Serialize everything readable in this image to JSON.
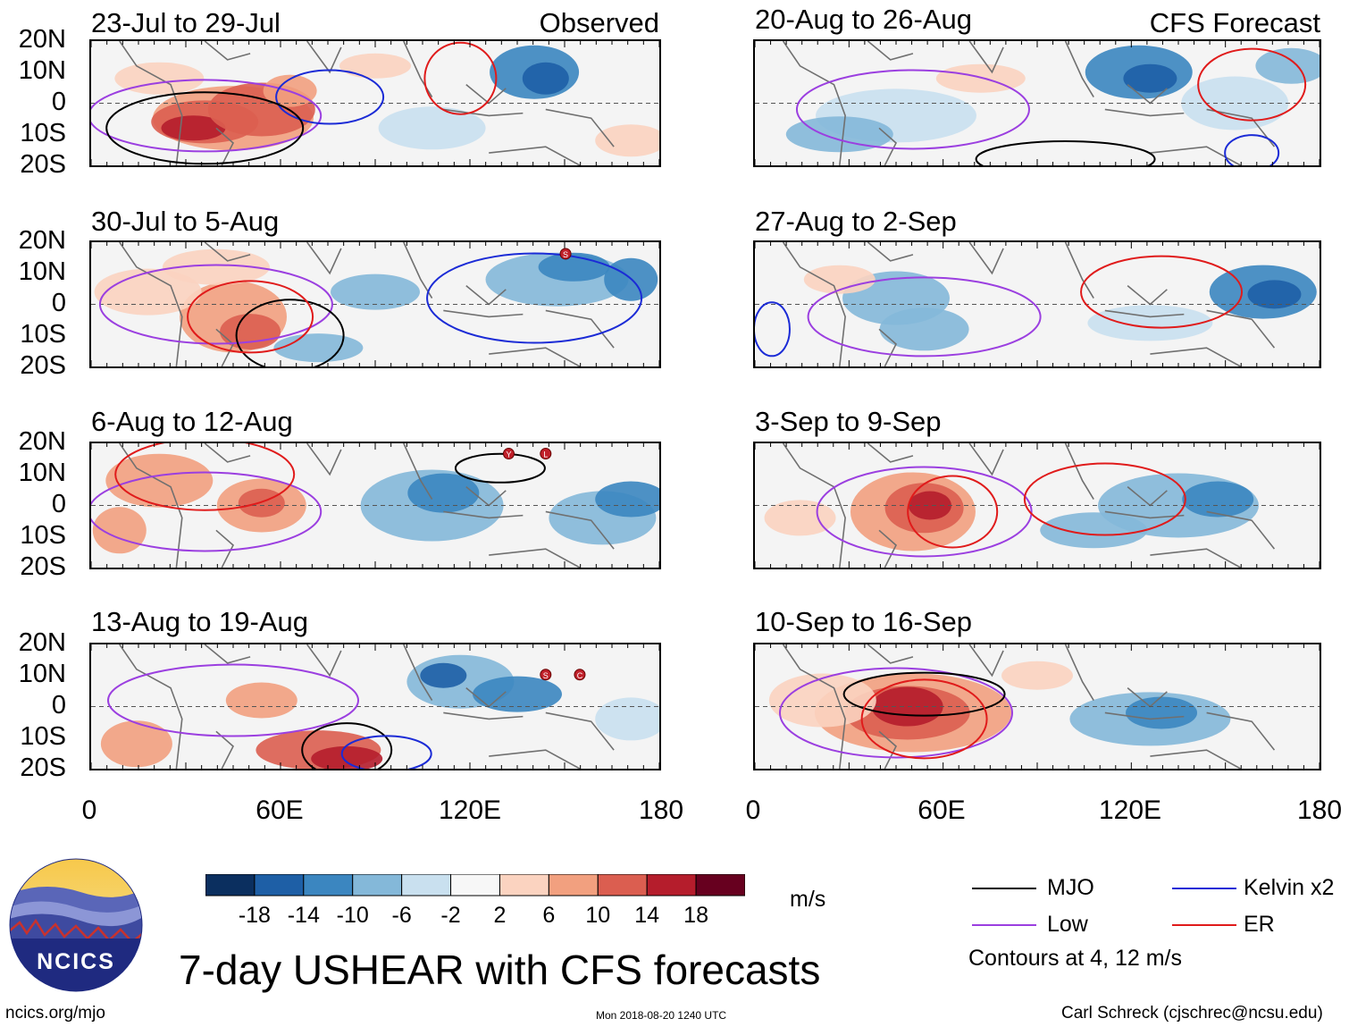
{
  "figure_title": "7-day USHEAR with CFS forecasts",
  "website": "ncics.org/mjo",
  "timestamp": "Mon 2018-08-20 1240 UTC",
  "author": "Carl Schreck (cjschrec@ncsu.edu)",
  "logo_text": "NCICS",
  "units": "m/s",
  "contour_note": "Contours at 4, 12 m/s",
  "observed_label": "Observed",
  "forecast_label": "CFS Forecast",
  "lat_labels": [
    "20N",
    "10N",
    "0",
    "10S",
    "20S"
  ],
  "lon_labels": [
    "0",
    "60E",
    "120E",
    "180"
  ],
  "panels": [
    {
      "title": "23-Jul to 29-Jul",
      "kind": "observed"
    },
    {
      "title": "30-Jul to 5-Aug",
      "kind": "observed"
    },
    {
      "title": "6-Aug to 12-Aug",
      "kind": "observed"
    },
    {
      "title": "13-Aug to 19-Aug",
      "kind": "observed"
    },
    {
      "title": "20-Aug to 26-Aug",
      "kind": "forecast"
    },
    {
      "title": "27-Aug to 2-Sep",
      "kind": "forecast"
    },
    {
      "title": "3-Sep to 9-Sep",
      "kind": "forecast"
    },
    {
      "title": "10-Sep to 16-Sep",
      "kind": "forecast"
    }
  ],
  "colorbar": {
    "labels": [
      "-18",
      "-14",
      "-10",
      "-6",
      "-2",
      "2",
      "6",
      "10",
      "14",
      "18"
    ],
    "colors": [
      "#0b2f5f",
      "#1e5fa6",
      "#3b86c0",
      "#84b8d9",
      "#c9e0ef",
      "#f7f7f7",
      "#fbd3c0",
      "#f2a07f",
      "#db5e50",
      "#b51d2c",
      "#67001f"
    ]
  },
  "legend": [
    {
      "label": "MJO",
      "color": "#000000"
    },
    {
      "label": "Kelvin x2",
      "color": "#1b2bd6"
    },
    {
      "label": "Low",
      "color": "#9b3fe0"
    },
    {
      "label": "ER",
      "color": "#e01b1b"
    }
  ],
  "storm_markers": [
    {
      "panel": 1,
      "letter": "S"
    },
    {
      "panel": 2,
      "letter": "Y"
    },
    {
      "panel": 2,
      "letter": "L"
    },
    {
      "panel": 3,
      "letter": "S"
    },
    {
      "panel": 3,
      "letter": "C"
    }
  ],
  "colors": {
    "mjo": "#000000",
    "kelvin": "#1b2bd6",
    "low": "#9b3fe0",
    "er": "#e01b1b",
    "coast": "#707070"
  }
}
